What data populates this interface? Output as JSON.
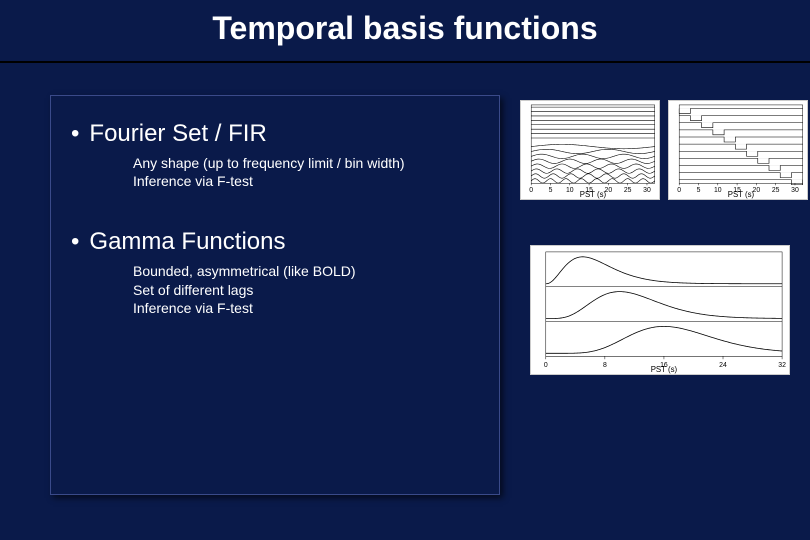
{
  "title": "Temporal basis functions",
  "background_color": "#0a1a4a",
  "box_border_color": "#3a4a8a",
  "sections": [
    {
      "heading": "Fourier Set / FIR",
      "lines": [
        "Any shape (up to frequency limit / bin width)",
        "Inference via F-test"
      ]
    },
    {
      "heading": "Gamma Functions",
      "lines": [
        "Bounded, asymmetrical (like BOLD)",
        "Set of different lags",
        "Inference via F-test"
      ]
    }
  ],
  "charts": {
    "fourier_left": {
      "type": "line",
      "xlim": [
        0,
        32
      ],
      "xticks": [
        0,
        5,
        10,
        15,
        20,
        25,
        30
      ],
      "xlabel": "PST (s)",
      "background_color": "#ffffff",
      "grid_color": "#e8e8e8",
      "line_color": "#000000",
      "line_width": 0.6,
      "nseries": 8,
      "sines_freq_mult": [
        1,
        2,
        3,
        4,
        5,
        6,
        7,
        8
      ]
    },
    "fourier_right": {
      "type": "step",
      "xlim": [
        0,
        32
      ],
      "xticks": [
        0,
        5,
        10,
        15,
        20,
        25,
        30
      ],
      "xlabel": "PST (s)",
      "background_color": "#ffffff",
      "grid_color": "#e8e8e8",
      "line_color": "#000000",
      "line_width": 0.6,
      "nbins": 11
    },
    "gamma": {
      "type": "line",
      "xlim": [
        0,
        32
      ],
      "xticks": [
        0,
        8,
        16,
        24,
        32
      ],
      "xlabel": "PST (s)",
      "background_color": "#ffffff",
      "grid_color": "#e8e8e8",
      "line_color": "#000000",
      "line_width": 0.8,
      "panels": 3,
      "peaks_at": [
        5,
        10,
        16
      ]
    }
  }
}
